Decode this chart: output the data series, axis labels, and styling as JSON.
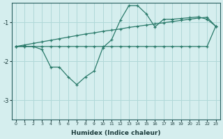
{
  "xlabel": "Humidex (Indice chaleur)",
  "bg_color": "#d5eeee",
  "grid_color": "#b0d8d8",
  "line_color": "#2a7a6a",
  "xlim": [
    -0.5,
    23.5
  ],
  "ylim": [
    -3.5,
    -0.5
  ],
  "yticks": [
    -3,
    -2,
    -1
  ],
  "xticks": [
    0,
    1,
    2,
    3,
    4,
    5,
    6,
    7,
    8,
    9,
    10,
    11,
    12,
    13,
    14,
    15,
    16,
    17,
    18,
    19,
    20,
    21,
    22,
    23
  ],
  "series1_x": [
    0,
    1,
    2,
    3,
    4,
    5,
    6,
    7,
    8,
    9,
    10,
    11,
    12,
    13,
    14,
    15,
    16,
    17,
    18,
    19,
    20,
    21,
    22,
    23
  ],
  "series1_y": [
    -1.62,
    -1.62,
    -1.62,
    -1.62,
    -1.62,
    -1.62,
    -1.62,
    -1.62,
    -1.62,
    -1.62,
    -1.62,
    -1.62,
    -1.62,
    -1.62,
    -1.62,
    -1.62,
    -1.62,
    -1.62,
    -1.62,
    -1.62,
    -1.62,
    -1.62,
    -1.62,
    -1.1
  ],
  "series2_x": [
    0,
    1,
    2,
    3,
    4,
    5,
    6,
    7,
    8,
    9,
    10,
    11,
    12,
    13,
    14,
    15,
    16,
    17,
    18,
    19,
    20,
    21,
    22,
    23
  ],
  "series2_y": [
    -1.62,
    -1.58,
    -1.54,
    -1.5,
    -1.46,
    -1.42,
    -1.38,
    -1.34,
    -1.3,
    -1.27,
    -1.23,
    -1.2,
    -1.17,
    -1.13,
    -1.1,
    -1.07,
    -1.04,
    -1.01,
    -0.98,
    -0.95,
    -0.92,
    -0.89,
    -0.87,
    -1.1
  ],
  "series3_x": [
    0,
    1,
    2,
    3,
    4,
    5,
    6,
    7,
    8,
    9,
    10,
    11,
    12,
    13,
    14,
    15,
    16,
    17,
    18,
    19,
    20,
    21,
    22,
    23
  ],
  "series3_y": [
    -1.62,
    -1.62,
    -1.62,
    -1.7,
    -2.15,
    -2.15,
    -2.4,
    -2.6,
    -2.4,
    -2.25,
    -1.65,
    -1.45,
    -0.95,
    -0.57,
    -0.57,
    -0.78,
    -1.12,
    -0.92,
    -0.92,
    -0.9,
    -0.88,
    -0.86,
    -0.92,
    -1.1
  ]
}
